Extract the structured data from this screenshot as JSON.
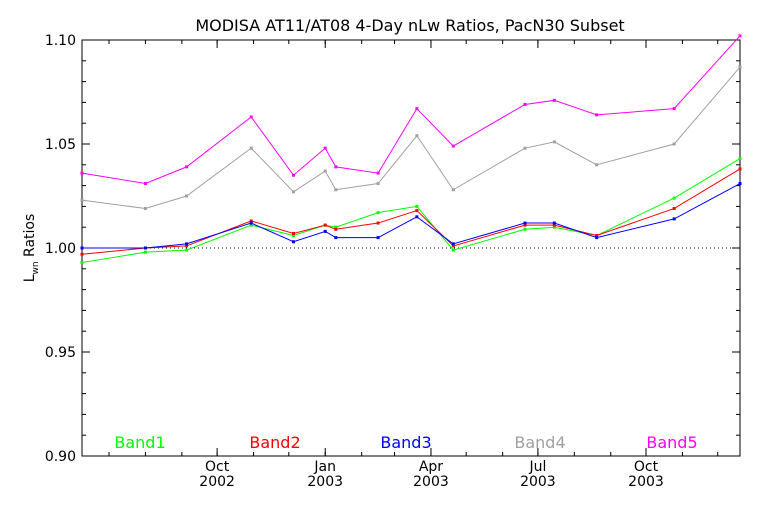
{
  "chart_data": {
    "type": "line",
    "title": "MODISA AT11/AT08 4-Day nLw Ratios, PacN30 Subset",
    "ylabel": "L",
    "ylabel_sub": "wn",
    "ylabel_rest": " Ratios",
    "ylim": [
      0.9,
      1.1
    ],
    "xlim": [
      "2002-06-08",
      "2003-12-20"
    ],
    "yticks": [
      {
        "value": 0.9,
        "label": "0.90"
      },
      {
        "value": 0.95,
        "label": "0.95"
      },
      {
        "value": 1.0,
        "label": "1.00"
      },
      {
        "value": 1.05,
        "label": "1.05"
      },
      {
        "value": 1.1,
        "label": "1.10"
      }
    ],
    "xticks": [
      {
        "date": "2002-10-01",
        "month": "Oct",
        "year": "2002"
      },
      {
        "date": "2003-01-01",
        "month": "Jan",
        "year": "2003"
      },
      {
        "date": "2003-04-01",
        "month": "Apr",
        "year": "2003"
      },
      {
        "date": "2003-07-01",
        "month": "Jul",
        "year": "2003"
      },
      {
        "date": "2003-10-01",
        "month": "Oct",
        "year": "2003"
      }
    ],
    "reference_line": {
      "value": 1.0,
      "style": "dotted"
    },
    "grid": false,
    "legend_position": "bottom",
    "x": [
      "2002-06-08",
      "2002-08-01",
      "2002-09-05",
      "2002-10-30",
      "2002-12-05",
      "2003-01-01",
      "2003-01-10",
      "2003-02-15",
      "2003-03-20",
      "2003-04-20",
      "2003-06-20",
      "2003-07-15",
      "2003-08-20",
      "2003-10-25",
      "2003-12-20"
    ],
    "series": [
      {
        "name": "Band1",
        "color": "#00ff00",
        "values": [
          0.993,
          0.998,
          0.999,
          1.011,
          1.006,
          1.011,
          1.01,
          1.017,
          1.02,
          0.999,
          1.009,
          1.01,
          1.006,
          1.024,
          1.043
        ]
      },
      {
        "name": "Band2",
        "color": "#ff0000",
        "values": [
          0.997,
          1.0,
          1.001,
          1.013,
          1.007,
          1.011,
          1.009,
          1.012,
          1.018,
          1.001,
          1.011,
          1.011,
          1.006,
          1.019,
          1.038
        ]
      },
      {
        "name": "Band3",
        "color": "#0000ff",
        "values": [
          1.0,
          1.0,
          1.002,
          1.012,
          1.003,
          1.008,
          1.005,
          1.005,
          1.015,
          1.002,
          1.012,
          1.012,
          1.005,
          1.014,
          1.031
        ]
      },
      {
        "name": "Band4",
        "color": "#a0a0a0",
        "values": [
          1.023,
          1.019,
          1.025,
          1.048,
          1.027,
          1.037,
          1.028,
          1.031,
          1.054,
          1.028,
          1.048,
          1.051,
          1.04,
          1.05,
          1.087
        ]
      },
      {
        "name": "Band5",
        "color": "#ff00ff",
        "values": [
          1.036,
          1.031,
          1.039,
          1.063,
          1.035,
          1.048,
          1.039,
          1.036,
          1.067,
          1.049,
          1.069,
          1.071,
          1.064,
          1.067,
          1.102
        ]
      }
    ]
  }
}
